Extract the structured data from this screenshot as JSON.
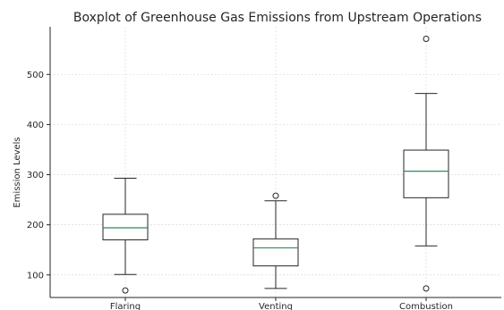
{
  "chart_data": {
    "type": "boxplot",
    "title": "Boxplot of Greenhouse Gas Emissions from Upstream Operations",
    "xlabel": "",
    "ylabel": "Emission Levels",
    "ylim": [
      55,
      595
    ],
    "yticks": [
      100,
      200,
      300,
      400,
      500
    ],
    "grid": true,
    "categories": [
      "Flaring",
      "Venting",
      "Combustion"
    ],
    "boxes": [
      {
        "name": "Flaring",
        "whisker_low": 101,
        "q1": 170,
        "median": 194,
        "q3": 221,
        "whisker_high": 293,
        "outliers": [
          69
        ]
      },
      {
        "name": "Venting",
        "whisker_low": 73,
        "q1": 118,
        "median": 154,
        "q3": 172,
        "whisker_high": 248,
        "outliers": [
          258
        ]
      },
      {
        "name": "Combustion",
        "whisker_low": 158,
        "q1": 254,
        "median": 307,
        "q3": 349,
        "whisker_high": 462,
        "outliers": [
          73,
          571
        ]
      }
    ],
    "colors": {
      "median": "#2e8b57",
      "box": "#262626",
      "grid": "#d9d9d9"
    }
  }
}
